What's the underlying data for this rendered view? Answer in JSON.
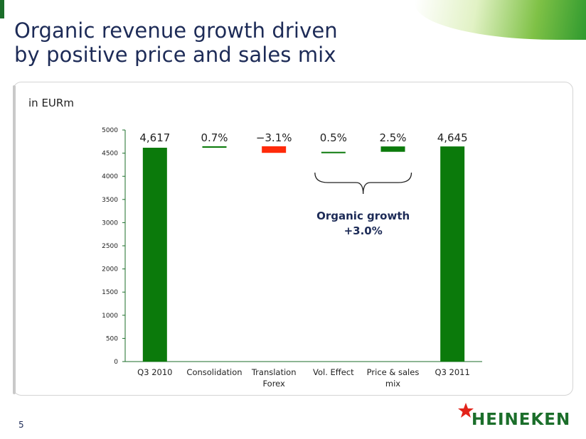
{
  "slide": {
    "title_line1": "Organic revenue growth driven",
    "title_line2": "by positive price and sales mix",
    "unit_label": "in EURm",
    "page_number": "5",
    "logo_text": "HEINEKEN"
  },
  "colors": {
    "positive": "#0b7a0b",
    "negative": "#ff2a0a",
    "axis": "#1b6e2a",
    "title": "#1d2b57"
  },
  "chart_data": {
    "type": "bar",
    "subtype": "waterfall",
    "categories": [
      "Q3 2010",
      "Consolidation",
      "Translation Forex",
      "Vol. Effect",
      "Price & sales mix",
      "Q3 2011"
    ],
    "category_lines": [
      [
        "Q3 2010"
      ],
      [
        "Consolidation"
      ],
      [
        "Translation",
        "Forex"
      ],
      [
        "Vol. Effect"
      ],
      [
        "Price & sales",
        "mix"
      ],
      [
        "Q3 2011"
      ]
    ],
    "bars": [
      {
        "label": "4,617",
        "kind": "total",
        "start": 0,
        "end": 4617
      },
      {
        "label": "0.7%",
        "kind": "increase",
        "start": 4617,
        "end": 4649
      },
      {
        "label": "−3.1%",
        "kind": "decrease",
        "start": 4649,
        "end": 4506
      },
      {
        "label": "0.5%",
        "kind": "increase",
        "start": 4506,
        "end": 4529
      },
      {
        "label": "2.5%",
        "kind": "increase",
        "start": 4529,
        "end": 4645
      },
      {
        "label": "4,645",
        "kind": "total",
        "start": 0,
        "end": 4645
      }
    ],
    "y_ticks": [
      0,
      500,
      1000,
      1500,
      2000,
      2500,
      3000,
      3500,
      4000,
      4500,
      5000
    ],
    "ylim": [
      0,
      5000
    ],
    "grid": false,
    "annotation": {
      "line1": "Organic growth",
      "line2": "+3.0%",
      "spans": [
        "Vol. Effect",
        "Price & sales mix"
      ]
    }
  }
}
